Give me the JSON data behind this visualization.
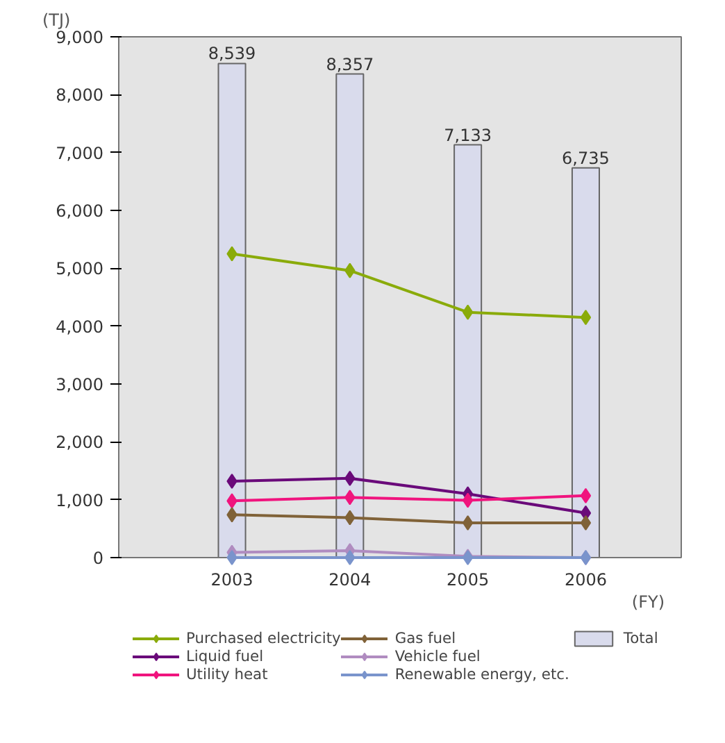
{
  "chart_data": {
    "type": "line",
    "categories": [
      "2003",
      "2004",
      "2005",
      "2006"
    ],
    "ylabel": "(TJ)",
    "xlabel": "(FY)",
    "ylim": [
      0,
      9000
    ],
    "yticks": [
      {
        "value": 0,
        "label": "0"
      },
      {
        "value": 1000,
        "label": "1,000"
      },
      {
        "value": 2000,
        "label": "2,000"
      },
      {
        "value": 3000,
        "label": "3,000"
      },
      {
        "value": 4000,
        "label": "4,000"
      },
      {
        "value": 5000,
        "label": "5,000"
      },
      {
        "value": 6000,
        "label": "6,000"
      },
      {
        "value": 7000,
        "label": "7,000"
      },
      {
        "value": 8000,
        "label": "8,000"
      },
      {
        "value": 9000,
        "label": "9,000"
      }
    ],
    "grid": false,
    "legend": "bottom",
    "marker": "diamond",
    "series": [
      {
        "name": "Purchased electricity",
        "color": "#8aab0a",
        "values": [
          5250,
          4960,
          4240,
          4150
        ]
      },
      {
        "name": "Liquid fuel",
        "color": "#6a0a7a",
        "values": [
          1320,
          1370,
          1100,
          770
        ]
      },
      {
        "name": "Utility heat",
        "color": "#f0147e",
        "values": [
          980,
          1040,
          990,
          1070
        ]
      },
      {
        "name": "Gas fuel",
        "color": "#806238",
        "values": [
          740,
          690,
          600,
          600
        ]
      },
      {
        "name": "Vehicle fuel",
        "color": "#b08cc0",
        "values": [
          90,
          120,
          20,
          0
        ]
      },
      {
        "name": "Renewable energy, etc.",
        "color": "#7a94cc",
        "values": [
          0,
          0,
          0,
          0
        ]
      },
      {
        "name": "Total",
        "type": "bar",
        "color": "#d9dbec",
        "values": [
          8539,
          8357,
          7133,
          6735
        ],
        "value_labels": [
          "8,539",
          "8,357",
          "7,133",
          "6,735"
        ]
      }
    ]
  }
}
